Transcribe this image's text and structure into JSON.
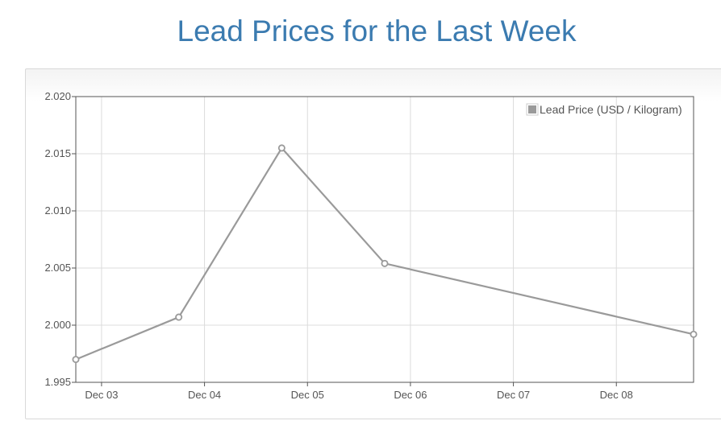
{
  "page": {
    "title": "Lead Prices for the Last Week"
  },
  "chart_data": {
    "type": "line",
    "title": "Lead Prices for the Last Week",
    "xlabel": "",
    "ylabel": "",
    "ylim": [
      1.995,
      2.02
    ],
    "y_ticks": [
      "2.020",
      "2.015",
      "2.010",
      "2.005",
      "2.000",
      "1.995"
    ],
    "x_ticks": [
      "Dec 03",
      "Dec 04",
      "Dec 05",
      "Dec 06",
      "Dec 07",
      "Dec 08"
    ],
    "x_domain": [
      "Dec 02 18:00",
      "Dec 08 18:00"
    ],
    "grid": true,
    "legend_position": "top-right",
    "series": [
      {
        "name": "Lead Price (USD / Kilogram)",
        "color": "#9a9a9a",
        "points": [
          {
            "x": "Dec 02 18:00",
            "y": 1.997
          },
          {
            "x": "Dec 03 18:00",
            "y": 2.0007
          },
          {
            "x": "Dec 04 18:00",
            "y": 2.0155
          },
          {
            "x": "Dec 05 18:00",
            "y": 2.0054
          },
          {
            "x": "Dec 08 18:00",
            "y": 1.9992
          }
        ]
      }
    ]
  }
}
